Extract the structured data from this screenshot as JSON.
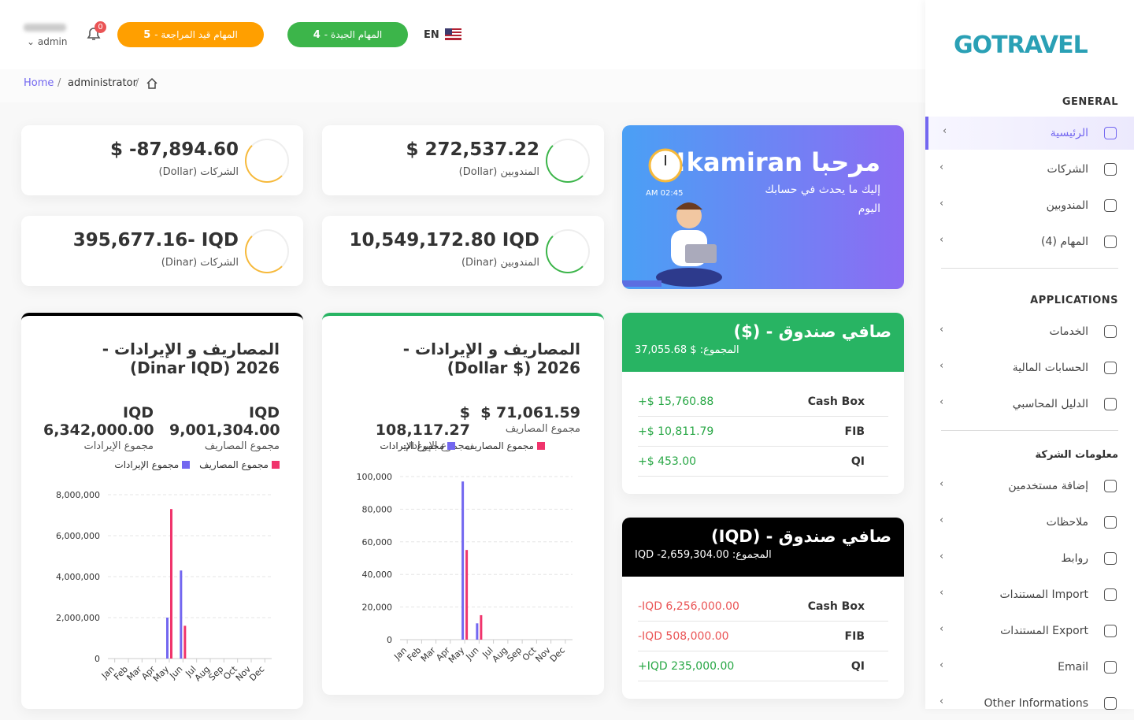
{
  "header": {
    "user_role": "admin",
    "notification_count": "0",
    "pending_tasks": {
      "count": "5",
      "label": "المهام قيد المراجعة -"
    },
    "good_tasks": {
      "count": "4",
      "label": "المهام الجيدة -"
    },
    "language": "EN"
  },
  "breadcrumb": [
    "Home",
    "administrator"
  ],
  "sidebar": {
    "logo": "GOTRAVEL",
    "sections": [
      {
        "title": "GENERAL",
        "items": [
          "الرئيسية",
          "الشركات",
          "المندوبين",
          "المهام (4)"
        ]
      },
      {
        "title": "APPLICATIONS",
        "items": [
          "الخدمات",
          "الحسابات المالية",
          "الدليل المحاسبي"
        ]
      },
      {
        "title": "معلومات الشركة",
        "items": [
          "إضافة مستخدمين",
          "ملاحظات",
          "روابط",
          "المستندات Import",
          "المستندات Export",
          "Email",
          "Other Informations"
        ]
      }
    ]
  },
  "stats": [
    {
      "amount": "$ -87,894.60",
      "label": "الشركات (Dollar)"
    },
    {
      "amount": "$ 272,537.22",
      "label": "المندوبين (Dollar)"
    },
    {
      "amount": "395,677.16- IQD",
      "label": "الشركات (Dinar)"
    },
    {
      "amount": "10,549,172.80 IQD",
      "label": "المندوبين (Dinar)"
    }
  ],
  "welcome": {
    "title": "مرحبا kamiran!",
    "subtitle": "إليك ما يحدث في حسابك اليوم",
    "time": "AM 02:45"
  },
  "funds": [
    {
      "title": "صافي صندوق - ($)",
      "total": "المجموع: $ 37,055.68",
      "rows": [
        {
          "name": "Cash Box",
          "amount": "+$ 15,760.88"
        },
        {
          "name": "FIB",
          "amount": "+$ 10,811.79"
        },
        {
          "name": "QI",
          "amount": "+$ 453.00"
        }
      ]
    },
    {
      "title": "صافي صندوق - (IQD)",
      "total": "المجموع: IQD -2,659,304.00",
      "rows": [
        {
          "name": "Cash Box",
          "amount": "-IQD 6,256,000.00"
        },
        {
          "name": "FIB",
          "amount": "-IQD 508,000.00"
        },
        {
          "name": "QI",
          "amount": "+IQD 235,000.00"
        }
      ]
    }
  ],
  "chart_data": [
    {
      "type": "bar",
      "title": "المصاريف و الإيرادات - 2026 (Dinar IQD)",
      "totals": [
        {
          "amount": "IQD 9,001,304.00",
          "label": "مجموع المصاريف"
        },
        {
          "amount": "IQD 6,342,000.00",
          "label": "مجموع الإيرادات"
        }
      ],
      "categories": [
        "Jan",
        "Feb",
        "Mar",
        "Apr",
        "May",
        "Jun",
        "Jul",
        "Aug",
        "Sep",
        "Oct",
        "Nov",
        "Dec"
      ],
      "series": [
        {
          "name": "مجموع الإيرادات",
          "color": "#7367f0",
          "values": [
            0,
            0,
            0,
            0,
            2000000,
            4300000,
            0,
            0,
            0,
            0,
            0,
            0
          ]
        },
        {
          "name": "مجموع المصاريف",
          "color": "#f0346c",
          "values": [
            0,
            0,
            0,
            0,
            7300000,
            1600000,
            0,
            0,
            0,
            0,
            0,
            0
          ]
        }
      ],
      "ylim": [
        0,
        8000000
      ],
      "yticks": [
        0,
        {
          "value": 2000000,
          "label": "2,000,000"
        },
        {
          "value": 4000000,
          "label": "4,000,000"
        },
        {
          "value": 6000000,
          "label": "6,000,000"
        },
        {
          "value": 8000000,
          "label": "8,000,000"
        }
      ],
      "grid": true
    },
    {
      "type": "bar",
      "title": "المصاريف و الإيرادات - 2026 ($ Dollar)",
      "totals": [
        {
          "amount": "$ 71,061.59",
          "label": "مجموع المصاريف"
        },
        {
          "amount": "$ 108,117.27",
          "label": "مجموع الإيرادات"
        }
      ],
      "categories": [
        "Jan",
        "Feb",
        "Mar",
        "Apr",
        "May",
        "Jun",
        "Jul",
        "Aug",
        "Sep",
        "Oct",
        "Nov",
        "Dec"
      ],
      "series": [
        {
          "name": "مجموع الإيرادات",
          "color": "#7367f0",
          "values": [
            0,
            0,
            0,
            0,
            97000,
            10000,
            0,
            0,
            0,
            0,
            0,
            0
          ]
        },
        {
          "name": "مجموع المصاريف",
          "color": "#f0346c",
          "values": [
            0,
            0,
            0,
            0,
            55000,
            15000,
            0,
            0,
            0,
            0,
            0,
            0
          ]
        }
      ],
      "ylim": [
        0,
        100000
      ],
      "yticks": [
        0,
        {
          "value": 20000,
          "label": "20,000"
        },
        {
          "value": 40000,
          "label": "40,000"
        },
        {
          "value": 60000,
          "label": "60,000"
        },
        {
          "value": 80000,
          "label": "80,000"
        },
        {
          "value": 100000,
          "label": "100,000"
        }
      ],
      "grid": true
    }
  ]
}
